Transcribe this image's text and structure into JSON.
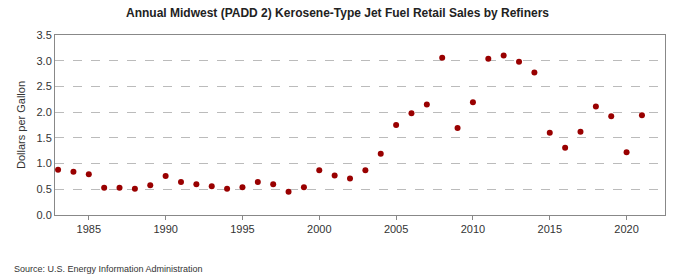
{
  "chart_data": {
    "type": "scatter",
    "title": "Annual Midwest (PADD 2) Kerosene-Type Jet Fuel Retail Sales by Refiners",
    "y_label": "Dollars per Gallon",
    "annotations": [
      {
        "text": "Source: U.S. Energy Information Administration"
      }
    ],
    "x": [
      1983,
      1984,
      1985,
      1986,
      1987,
      1988,
      1989,
      1990,
      1991,
      1992,
      1993,
      1994,
      1995,
      1996,
      1997,
      1998,
      1999,
      2000,
      2001,
      2002,
      2003,
      2004,
      2005,
      2006,
      2007,
      2008,
      2009,
      2010,
      2011,
      2012,
      2013,
      2014,
      2015,
      2016,
      2017,
      2018,
      2019,
      2020,
      2021
    ],
    "values": [
      0.88,
      0.84,
      0.79,
      0.53,
      0.53,
      0.51,
      0.58,
      0.76,
      0.64,
      0.6,
      0.56,
      0.51,
      0.54,
      0.64,
      0.6,
      0.45,
      0.54,
      0.87,
      0.77,
      0.71,
      0.87,
      1.19,
      1.75,
      1.98,
      2.15,
      3.06,
      1.69,
      2.19,
      3.04,
      3.1,
      2.98,
      2.77,
      1.6,
      1.31,
      1.62,
      2.11,
      1.92,
      1.22,
      1.94
    ],
    "color": "#990000",
    "marker": "circle",
    "xlim": [
      1982.8,
      2022.5
    ],
    "xticks": [
      1985,
      1990,
      1995,
      2000,
      2005,
      2010,
      2015,
      2020
    ],
    "ylim": [
      0,
      3.5
    ],
    "yticks": [
      {
        "value": 0,
        "label": "0.0"
      },
      {
        "value": 0.5,
        "label": "0.5"
      },
      {
        "value": 1,
        "label": "1.0"
      },
      {
        "value": 1.5,
        "label": "1.5"
      },
      {
        "value": 2,
        "label": "2.0"
      },
      {
        "value": 2.5,
        "label": "2.5"
      },
      {
        "value": 3,
        "label": "3.0"
      },
      {
        "value": 3.5,
        "label": "3.5"
      }
    ],
    "grid": true
  }
}
